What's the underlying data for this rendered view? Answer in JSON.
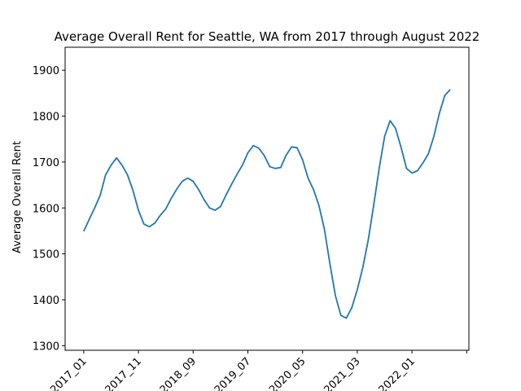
{
  "chart_data": {
    "type": "line",
    "title": "Average Overall Rent for Seattle, WA from 2017 through August 2022",
    "xlabel": "",
    "ylabel": "Average Overall Rent",
    "ylim": [
      1290,
      1950
    ],
    "yticks": [
      1300,
      1400,
      1500,
      1600,
      1700,
      1800,
      1900
    ],
    "xtick_positions": [
      0,
      10,
      20,
      30,
      40,
      50,
      60,
      70
    ],
    "xtick_labels": [
      "2017_01",
      "2017_11",
      "2018_09",
      "2019_07",
      "2020_05",
      "2021_03",
      "2022_01",
      ""
    ],
    "grid": false,
    "color": "#1f77b4",
    "series": [
      {
        "x": [
          "2017_01",
          "2017_02",
          "2017_03",
          "2017_04",
          "2017_05",
          "2017_06",
          "2017_07",
          "2017_08",
          "2017_09",
          "2017_10",
          "2017_11",
          "2017_12",
          "2018_01",
          "2018_02",
          "2018_03",
          "2018_04",
          "2018_05",
          "2018_06",
          "2018_07",
          "2018_08",
          "2018_09",
          "2018_10",
          "2018_11",
          "2018_12",
          "2019_01",
          "2019_02",
          "2019_03",
          "2019_04",
          "2019_05",
          "2019_06",
          "2019_07",
          "2019_08",
          "2019_09",
          "2019_10",
          "2019_11",
          "2019_12",
          "2020_01",
          "2020_02",
          "2020_03",
          "2020_04",
          "2020_05",
          "2020_06",
          "2020_07",
          "2020_08",
          "2020_09",
          "2020_10",
          "2020_11",
          "2020_12",
          "2021_01",
          "2021_02",
          "2021_03",
          "2021_04",
          "2021_05",
          "2021_06",
          "2021_07",
          "2021_08",
          "2021_09",
          "2021_10",
          "2021_11",
          "2021_12",
          "2022_01",
          "2022_02",
          "2022_03",
          "2022_04",
          "2022_05",
          "2022_06",
          "2022_07",
          "2022_08"
        ],
        "values": [
          1549,
          1575,
          1600,
          1627,
          1672,
          1693,
          1709,
          1693,
          1672,
          1638,
          1595,
          1565,
          1559,
          1567,
          1584,
          1598,
          1621,
          1641,
          1658,
          1665,
          1658,
          1640,
          1618,
          1600,
          1595,
          1603,
          1628,
          1651,
          1673,
          1693,
          1720,
          1736,
          1730,
          1714,
          1690,
          1686,
          1688,
          1715,
          1733,
          1731,
          1705,
          1665,
          1640,
          1605,
          1553,
          1478,
          1409,
          1366,
          1360,
          1383,
          1422,
          1470,
          1530,
          1606,
          1686,
          1756,
          1790,
          1773,
          1732,
          1686,
          1676,
          1681,
          1698,
          1718,
          1756,
          1806,
          1845,
          1858
        ]
      }
    ]
  }
}
